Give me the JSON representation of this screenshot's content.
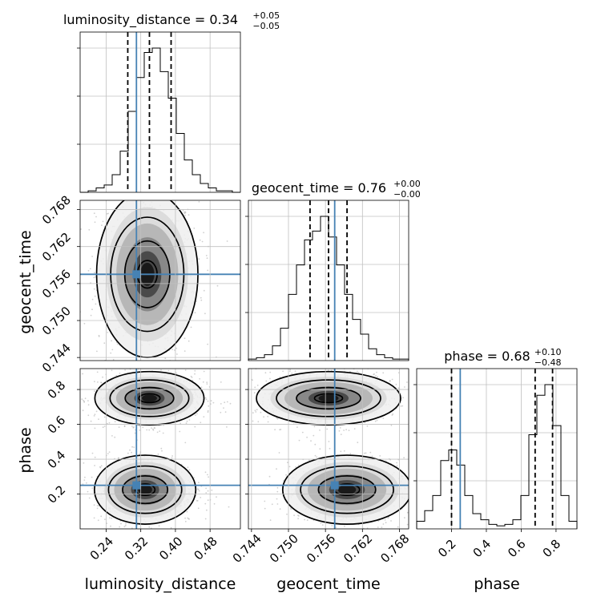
{
  "truth_color": "#4682b4",
  "line_color": "#000000",
  "grid_color": "#c0c0c0",
  "chart_data": {
    "type": "corner",
    "parameters": [
      "luminosity_distance",
      "geocent_time",
      "phase"
    ],
    "titles": [
      {
        "main": "luminosity_distance = 0.34",
        "sup": "+0.05",
        "sub": "−0.05"
      },
      {
        "main": "geocent_time = 0.76",
        "sup": "+0.00",
        "sub": "−0.00"
      },
      {
        "main": "phase = 0.68",
        "sup": "+0.10",
        "sub": "−0.48"
      }
    ],
    "truths": [
      0.31,
      0.7575,
      0.25
    ],
    "ranges": [
      [
        0.18,
        0.55
      ],
      [
        0.7435,
        0.7695
      ],
      [
        0.0,
        0.92
      ]
    ],
    "ticks": {
      "luminosity_distance": [
        0.24,
        0.32,
        0.4,
        0.48
      ],
      "geocent_time": [
        0.744,
        0.75,
        0.756,
        0.762,
        0.768
      ],
      "phase": [
        0.2,
        0.4,
        0.6,
        0.8
      ]
    },
    "tick_labels": {
      "luminosity_distance": [
        "0.24",
        "0.32",
        "0.40",
        "0.48"
      ],
      "geocent_time": [
        "0.744",
        "0.750",
        "0.756",
        "0.762",
        "0.768"
      ],
      "phase": [
        "0.2",
        "0.4",
        "0.6",
        "0.8"
      ]
    },
    "quantiles": [
      [
        0.29,
        0.34,
        0.39
      ],
      [
        0.7535,
        0.7565,
        0.7595
      ],
      [
        0.2,
        0.68,
        0.78
      ]
    ],
    "histograms": [
      {
        "edges_start": 0.18,
        "bin_width": 0.0185,
        "counts": [
          0,
          1,
          3,
          5,
          12,
          28,
          55,
          78,
          95,
          98,
          82,
          64,
          40,
          22,
          12,
          6,
          3,
          1,
          1,
          0
        ]
      },
      {
        "edges_start": 0.7435,
        "bin_width": 0.0013,
        "counts": [
          1,
          2,
          4,
          10,
          22,
          45,
          65,
          82,
          88,
          98,
          84,
          65,
          45,
          28,
          18,
          8,
          4,
          2,
          1,
          1
        ]
      },
      {
        "edges_start": 0.0,
        "bin_width": 0.046,
        "counts": [
          5,
          12,
          22,
          45,
          52,
          42,
          22,
          10,
          6,
          3,
          2,
          3,
          6,
          22,
          62,
          88,
          95,
          68,
          22,
          5
        ]
      }
    ],
    "panels_2d": [
      {
        "x": "luminosity_distance",
        "y": "geocent_time",
        "modes": [
          {
            "cx": 0.335,
            "cy": 0.7575,
            "sx": 0.065,
            "sy": 0.0075
          }
        ]
      },
      {
        "x": "luminosity_distance",
        "y": "phase",
        "modes": [
          {
            "cx": 0.34,
            "cy": 0.75,
            "sx": 0.07,
            "sy": 0.085
          },
          {
            "cx": 0.33,
            "cy": 0.225,
            "sx": 0.065,
            "sy": 0.11
          }
        ]
      },
      {
        "x": "geocent_time",
        "y": "phase",
        "modes": [
          {
            "cx": 0.7565,
            "cy": 0.75,
            "sx": 0.0065,
            "sy": 0.085
          },
          {
            "cx": 0.7595,
            "cy": 0.225,
            "sx": 0.0058,
            "sy": 0.11
          }
        ]
      }
    ],
    "grid": true
  }
}
